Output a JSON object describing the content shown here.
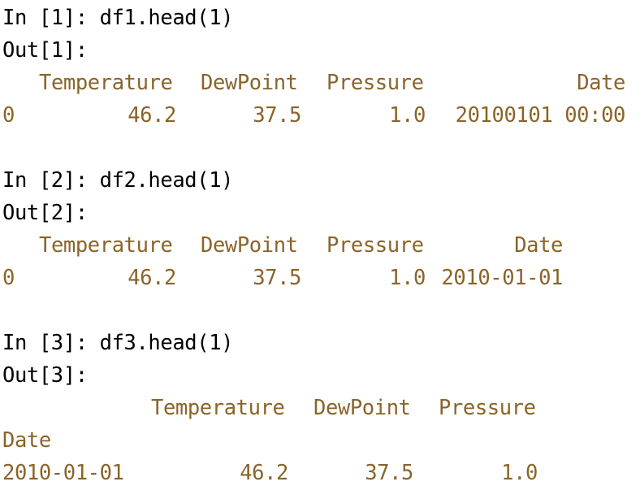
{
  "blocks": [
    {
      "input": "In [1]: df1.head(1)",
      "output_label": "Out[1]:",
      "header": [
        "Temperature",
        "DewPoint",
        "Pressure",
        "Date"
      ],
      "row": [
        "0",
        "46.2",
        "37.5",
        "1.0",
        "20100101 00:00"
      ]
    },
    {
      "input": "In [2]: df2.head(1)",
      "output_label": "Out[2]:",
      "header": [
        "Temperature",
        "DewPoint",
        "Pressure",
        "Date"
      ],
      "row": [
        "0",
        "46.2",
        "37.5",
        "1.0",
        "2010-01-01"
      ]
    },
    {
      "input": "In [3]: df3.head(1)",
      "output_label": "Out[3]:",
      "header": [
        "Temperature",
        "DewPoint",
        "Pressure"
      ],
      "index_name": "Date",
      "row": [
        "2010-01-01",
        "46.2",
        "37.5",
        "1.0"
      ]
    }
  ],
  "colors": {
    "prompt": "#000000",
    "output_text": "#8a6429",
    "background": "#ffffff"
  }
}
